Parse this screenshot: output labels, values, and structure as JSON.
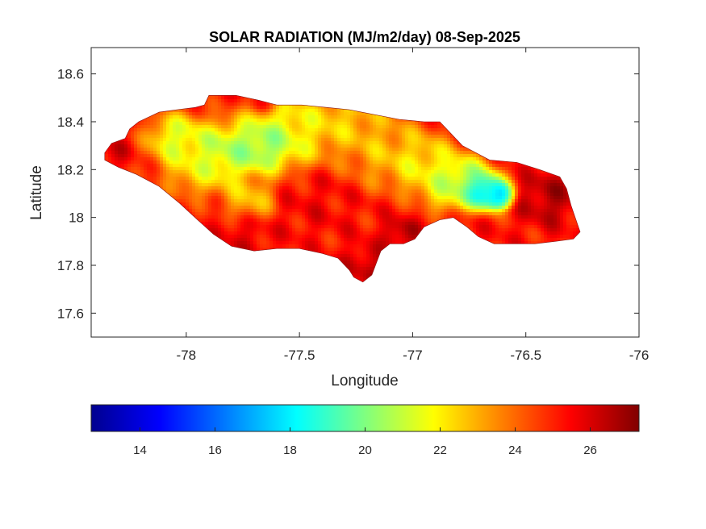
{
  "chart_data": {
    "type": "heatmap",
    "title": "SOLAR RADIATION (MJ/m2/day) 08-Sep-2025",
    "xlabel": "Longitude",
    "ylabel": "Latitude",
    "xlim": [
      -78.42,
      -76.0
    ],
    "ylim": [
      17.5,
      18.71
    ],
    "xticks": [
      -78,
      -77.5,
      -77,
      -76.5,
      -76
    ],
    "xtick_labels": [
      "-78",
      "-77.5",
      "-77",
      "-76.5",
      "-76"
    ],
    "yticks": [
      17.6,
      17.8,
      18.0,
      18.2,
      18.4,
      18.6
    ],
    "ytick_labels": [
      "17.6",
      "17.8",
      "18",
      "18.2",
      "18.4",
      "18.6"
    ],
    "colormap": "jet",
    "colorbar": {
      "range": [
        12.7,
        27.3
      ],
      "ticks": [
        14,
        16,
        18,
        20,
        22,
        24,
        26
      ],
      "tick_labels": [
        "14",
        "16",
        "18",
        "20",
        "22",
        "24",
        "26"
      ]
    },
    "region_outline": [
      [
        -78.36,
        18.27
      ],
      [
        -78.33,
        18.31
      ],
      [
        -78.27,
        18.33
      ],
      [
        -78.25,
        18.37
      ],
      [
        -78.21,
        18.4
      ],
      [
        -78.12,
        18.44
      ],
      [
        -78.04,
        18.45
      ],
      [
        -77.96,
        18.46
      ],
      [
        -77.92,
        18.47
      ],
      [
        -77.9,
        18.51
      ],
      [
        -77.78,
        18.51
      ],
      [
        -77.68,
        18.49
      ],
      [
        -77.6,
        18.47
      ],
      [
        -77.49,
        18.47
      ],
      [
        -77.38,
        18.46
      ],
      [
        -77.28,
        18.45
      ],
      [
        -77.17,
        18.43
      ],
      [
        -77.06,
        18.41
      ],
      [
        -76.95,
        18.4
      ],
      [
        -76.88,
        18.4
      ],
      [
        -76.84,
        18.36
      ],
      [
        -76.78,
        18.3
      ],
      [
        -76.72,
        18.27
      ],
      [
        -76.66,
        18.24
      ],
      [
        -76.54,
        18.23
      ],
      [
        -76.44,
        18.2
      ],
      [
        -76.35,
        18.17
      ],
      [
        -76.32,
        18.12
      ],
      [
        -76.3,
        18.05
      ],
      [
        -76.26,
        17.94
      ],
      [
        -76.29,
        17.91
      ],
      [
        -76.37,
        17.9
      ],
      [
        -76.46,
        17.89
      ],
      [
        -76.56,
        17.89
      ],
      [
        -76.64,
        17.89
      ],
      [
        -76.71,
        17.92
      ],
      [
        -76.76,
        17.96
      ],
      [
        -76.82,
        18.0
      ],
      [
        -76.88,
        17.99
      ],
      [
        -76.95,
        17.96
      ],
      [
        -76.99,
        17.91
      ],
      [
        -77.04,
        17.89
      ],
      [
        -77.1,
        17.89
      ],
      [
        -77.14,
        17.86
      ],
      [
        -77.16,
        17.81
      ],
      [
        -77.18,
        17.76
      ],
      [
        -77.22,
        17.73
      ],
      [
        -77.26,
        17.75
      ],
      [
        -77.28,
        17.78
      ],
      [
        -77.33,
        17.83
      ],
      [
        -77.4,
        17.85
      ],
      [
        -77.5,
        17.87
      ],
      [
        -77.6,
        17.87
      ],
      [
        -77.7,
        17.86
      ],
      [
        -77.8,
        17.88
      ],
      [
        -77.88,
        17.93
      ],
      [
        -77.95,
        17.99
      ],
      [
        -78.03,
        18.06
      ],
      [
        -78.12,
        18.13
      ],
      [
        -78.22,
        18.18
      ],
      [
        -78.3,
        18.21
      ],
      [
        -78.36,
        18.24
      ]
    ],
    "field_features": [
      {
        "lon": -77.3,
        "lat": 18.42,
        "value": 21.8,
        "spread": 0.14
      },
      {
        "lon": -77.55,
        "lat": 18.36,
        "value": 20.6,
        "spread": 0.15
      },
      {
        "lon": -77.66,
        "lat": 18.3,
        "value": 18.6,
        "spread": 0.1
      },
      {
        "lon": -77.83,
        "lat": 18.27,
        "value": 19.4,
        "spread": 0.12
      },
      {
        "lon": -77.95,
        "lat": 18.22,
        "value": 21.4,
        "spread": 0.12
      },
      {
        "lon": -78.04,
        "lat": 18.33,
        "value": 20.2,
        "spread": 0.1
      },
      {
        "lon": -77.72,
        "lat": 18.08,
        "value": 21.8,
        "spread": 0.09
      },
      {
        "lon": -77.12,
        "lat": 18.28,
        "value": 22.2,
        "spread": 0.14
      },
      {
        "lon": -76.95,
        "lat": 18.22,
        "value": 21.0,
        "spread": 0.12
      },
      {
        "lon": -76.78,
        "lat": 18.15,
        "value": 18.8,
        "spread": 0.1
      },
      {
        "lon": -76.68,
        "lat": 18.11,
        "value": 15.2,
        "spread": 0.07
      },
      {
        "lon": -76.62,
        "lat": 18.09,
        "value": 15.8,
        "spread": 0.05
      },
      {
        "lon": -76.86,
        "lat": 18.12,
        "value": 21.2,
        "spread": 0.08
      },
      {
        "lon": -76.4,
        "lat": 18.08,
        "value": 27.0,
        "spread": 0.1
      },
      {
        "lon": -77.05,
        "lat": 17.93,
        "value": 27.0,
        "spread": 0.06
      },
      {
        "lon": -77.2,
        "lat": 17.8,
        "value": 26.6,
        "spread": 0.08
      },
      {
        "lon": -77.75,
        "lat": 17.92,
        "value": 26.0,
        "spread": 0.09
      },
      {
        "lon": -78.32,
        "lat": 18.27,
        "value": 26.2,
        "spread": 0.05
      },
      {
        "lon": -77.65,
        "lat": 18.49,
        "value": 26.0,
        "spread": 0.05
      },
      {
        "lon": -77.45,
        "lat": 18.05,
        "value": 25.6,
        "spread": 0.12
      }
    ]
  }
}
